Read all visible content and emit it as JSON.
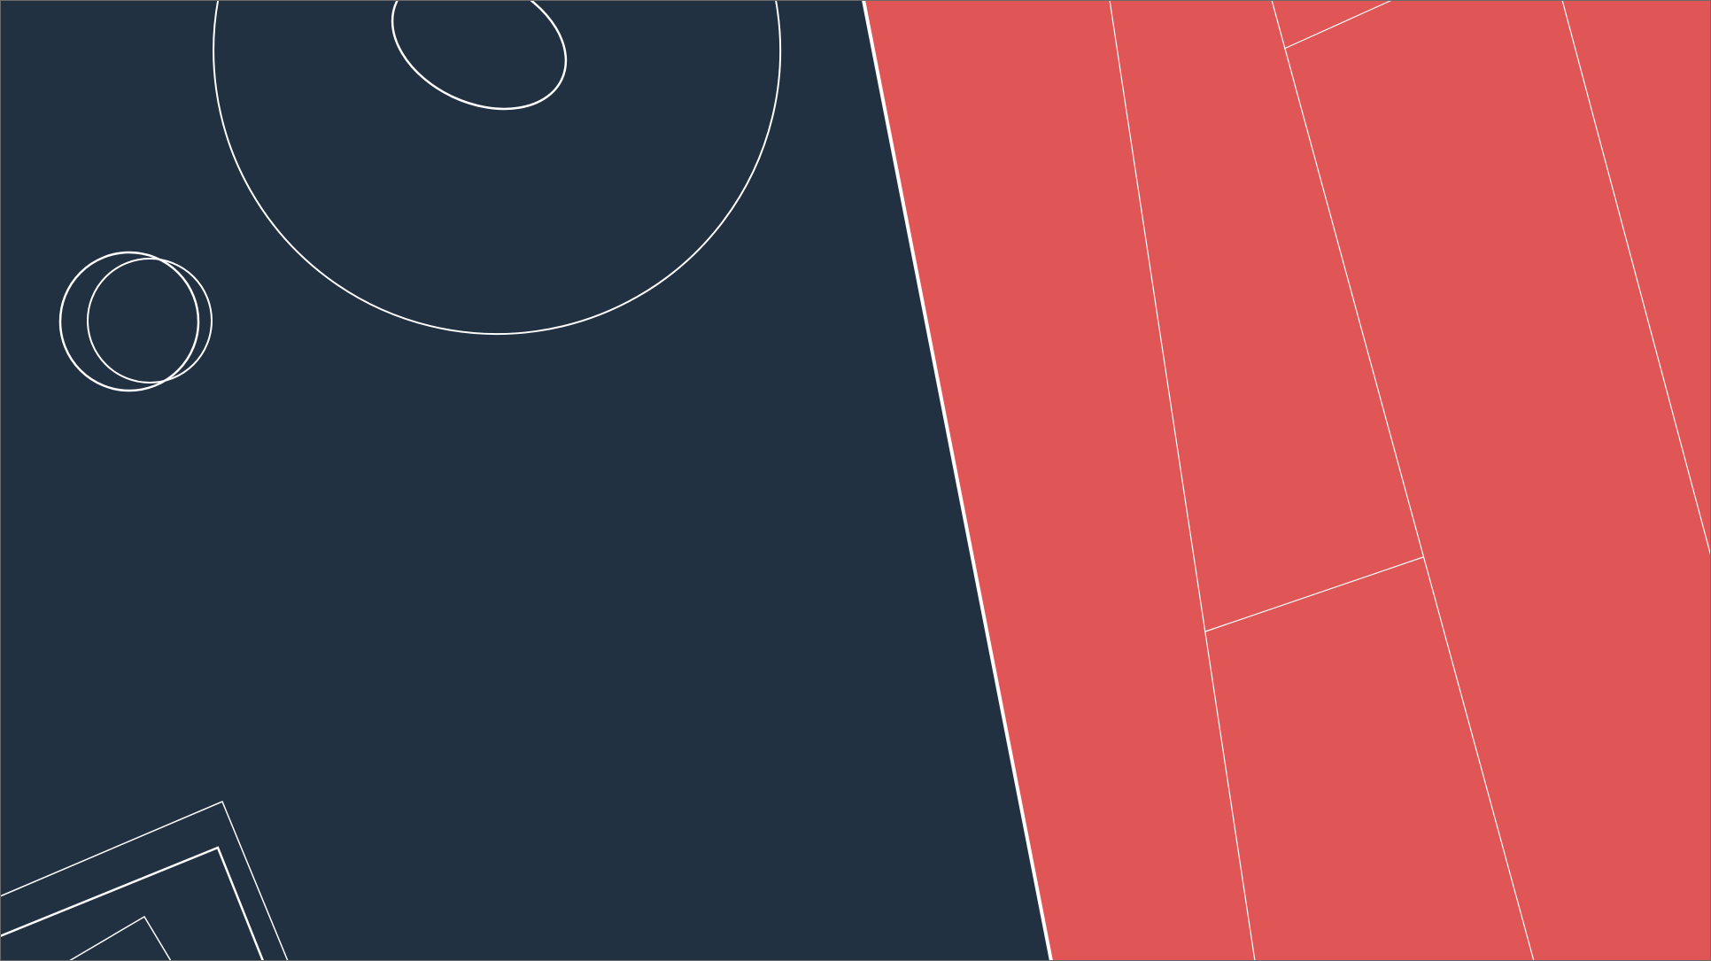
{
  "colors": {
    "navy_panel": "#213142",
    "coral_panel": "#E05555",
    "outline_stroke": "#FFFFFF",
    "frame_border": "#6B6B6B"
  },
  "decorations": {
    "left_panel": [
      "large-ellipse",
      "small-tilted-ellipse",
      "overlapping-circles",
      "nested-rotated-rectangles"
    ],
    "right_panel": [
      "diagonal-split-line",
      "diagonal-stripe-lines"
    ]
  }
}
